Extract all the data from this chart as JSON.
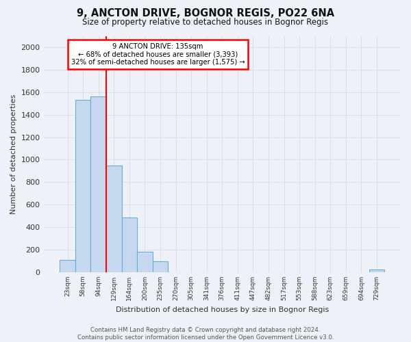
{
  "title1": "9, ANCTON DRIVE, BOGNOR REGIS, PO22 6NA",
  "title2": "Size of property relative to detached houses in Bognor Regis",
  "xlabel": "Distribution of detached houses by size in Bognor Regis",
  "ylabel": "Number of detached properties",
  "bar_labels": [
    "23sqm",
    "58sqm",
    "94sqm",
    "129sqm",
    "164sqm",
    "200sqm",
    "235sqm",
    "270sqm",
    "305sqm",
    "341sqm",
    "376sqm",
    "411sqm",
    "447sqm",
    "482sqm",
    "517sqm",
    "553sqm",
    "588sqm",
    "623sqm",
    "659sqm",
    "694sqm",
    "729sqm"
  ],
  "bar_values": [
    107,
    1533,
    1565,
    950,
    483,
    183,
    97,
    0,
    0,
    0,
    0,
    0,
    0,
    0,
    0,
    0,
    0,
    0,
    0,
    0,
    25
  ],
  "bar_color": "#c5d8f0",
  "bar_edge_color": "#6aaad4",
  "red_line_index": 3,
  "annotation_line1": "9 ANCTON DRIVE: 135sqm",
  "annotation_line2": "← 68% of detached houses are smaller (3,393)",
  "annotation_line3": "32% of semi-detached houses are larger (1,575) →",
  "annotation_box_color": "white",
  "annotation_box_edge": "red",
  "ylim_max": 2100,
  "yticks": [
    0,
    200,
    400,
    600,
    800,
    1000,
    1200,
    1400,
    1600,
    1800,
    2000
  ],
  "footer": "Contains HM Land Registry data © Crown copyright and database right 2024.\nContains public sector information licensed under the Open Government Licence v3.0.",
  "bg_color": "#eef2f8",
  "grid_color": "#d8e0ec"
}
